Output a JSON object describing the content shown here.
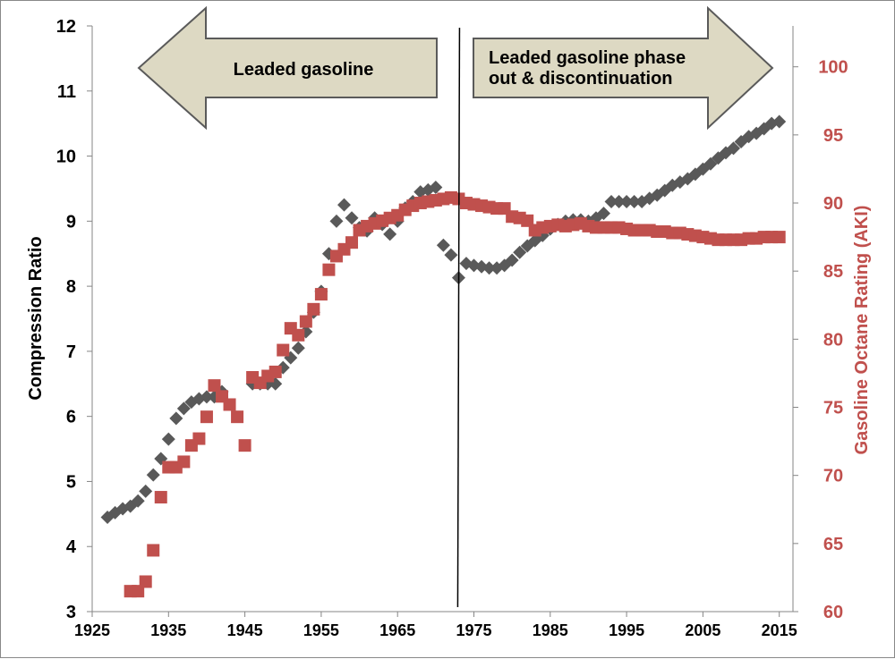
{
  "chart_data": {
    "type": "scatter",
    "title": "",
    "xlabel": "",
    "ylabel": "Compression Ratio",
    "y2label": "Gasoline Octane Rating (AKI)",
    "xlim": [
      1925,
      2018
    ],
    "ylim": [
      3,
      12
    ],
    "y2lim": [
      60,
      103
    ],
    "x_ticks": [
      "1925",
      "1935",
      "1945",
      "1955",
      "1965",
      "1975",
      "1985",
      "1995",
      "2005",
      "2015"
    ],
    "y_ticks": [
      "3",
      "4",
      "5",
      "6",
      "7",
      "8",
      "9",
      "10",
      "11",
      "12"
    ],
    "y2_ticks": [
      "60",
      "65",
      "70",
      "75",
      "80",
      "85",
      "90",
      "95",
      "100"
    ],
    "grid": false,
    "colors": {
      "compression": "#595959",
      "octane": "#c0504d",
      "y2axis": "#c0504d",
      "arrow_fill": "#ddd9c3",
      "arrow_stroke": "#5a5a5a"
    },
    "vertical_line_x": 1973,
    "annotations": [
      {
        "text": "Leaded gasoline",
        "shape": "arrow-left"
      },
      {
        "text": "Leaded gasoline phase",
        "shape": "arrow-right"
      },
      {
        "text": "out & discontinuation",
        "shape": "arrow-right"
      }
    ],
    "series": [
      {
        "name": "Compression Ratio",
        "axis": "left",
        "marker": "diamond",
        "points": [
          [
            1927,
            4.45
          ],
          [
            1928,
            4.52
          ],
          [
            1929,
            4.58
          ],
          [
            1930,
            4.62
          ],
          [
            1931,
            4.7
          ],
          [
            1932,
            4.85
          ],
          [
            1933,
            5.1
          ],
          [
            1934,
            5.35
          ],
          [
            1935,
            5.65
          ],
          [
            1936,
            5.97
          ],
          [
            1937,
            6.12
          ],
          [
            1938,
            6.22
          ],
          [
            1939,
            6.27
          ],
          [
            1940,
            6.3
          ],
          [
            1941,
            6.3
          ],
          [
            1942,
            6.38
          ],
          [
            1946,
            6.5
          ],
          [
            1947,
            6.5
          ],
          [
            1948,
            6.5
          ],
          [
            1949,
            6.5
          ],
          [
            1950,
            6.75
          ],
          [
            1951,
            6.9
          ],
          [
            1952,
            7.05
          ],
          [
            1953,
            7.3
          ],
          [
            1954,
            7.6
          ],
          [
            1955,
            7.92
          ],
          [
            1956,
            8.5
          ],
          [
            1957,
            9.0
          ],
          [
            1958,
            9.25
          ],
          [
            1959,
            9.05
          ],
          [
            1960,
            8.9
          ],
          [
            1961,
            8.85
          ],
          [
            1962,
            9.05
          ],
          [
            1963,
            8.95
          ],
          [
            1964,
            8.8
          ],
          [
            1965,
            9.0
          ],
          [
            1966,
            9.2
          ],
          [
            1967,
            9.3
          ],
          [
            1968,
            9.45
          ],
          [
            1969,
            9.48
          ],
          [
            1970,
            9.52
          ],
          [
            1971,
            8.63
          ],
          [
            1972,
            8.48
          ],
          [
            1973,
            8.13
          ],
          [
            1974,
            8.35
          ],
          [
            1975,
            8.32
          ],
          [
            1976,
            8.3
          ],
          [
            1977,
            8.28
          ],
          [
            1978,
            8.28
          ],
          [
            1979,
            8.32
          ],
          [
            1980,
            8.4
          ],
          [
            1981,
            8.52
          ],
          [
            1982,
            8.62
          ],
          [
            1983,
            8.7
          ],
          [
            1984,
            8.78
          ],
          [
            1985,
            8.88
          ],
          [
            1986,
            8.95
          ],
          [
            1987,
            9.0
          ],
          [
            1988,
            9.02
          ],
          [
            1989,
            9.02
          ],
          [
            1990,
            9.0
          ],
          [
            1991,
            9.05
          ],
          [
            1992,
            9.12
          ],
          [
            1993,
            9.3
          ],
          [
            1994,
            9.3
          ],
          [
            1995,
            9.3
          ],
          [
            1996,
            9.3
          ],
          [
            1997,
            9.3
          ],
          [
            1998,
            9.35
          ],
          [
            1999,
            9.4
          ],
          [
            2000,
            9.47
          ],
          [
            2001,
            9.55
          ],
          [
            2002,
            9.6
          ],
          [
            2003,
            9.65
          ],
          [
            2004,
            9.72
          ],
          [
            2005,
            9.8
          ],
          [
            2006,
            9.88
          ],
          [
            2007,
            9.97
          ],
          [
            2008,
            10.05
          ],
          [
            2009,
            10.12
          ],
          [
            2010,
            10.22
          ],
          [
            2011,
            10.3
          ],
          [
            2012,
            10.35
          ],
          [
            2013,
            10.42
          ],
          [
            2014,
            10.5
          ],
          [
            2015,
            10.53
          ]
        ]
      },
      {
        "name": "Gasoline Octane Rating (AKI)",
        "axis": "right",
        "marker": "square",
        "points": [
          [
            1930,
            61.5
          ],
          [
            1931,
            61.5
          ],
          [
            1932,
            62.2
          ],
          [
            1933,
            64.5
          ],
          [
            1934,
            68.4
          ],
          [
            1935,
            70.6
          ],
          [
            1936,
            70.6
          ],
          [
            1937,
            71.0
          ],
          [
            1938,
            72.2
          ],
          [
            1939,
            72.7
          ],
          [
            1940,
            74.3
          ],
          [
            1941,
            76.6
          ],
          [
            1942,
            75.8
          ],
          [
            1943,
            75.2
          ],
          [
            1944,
            74.3
          ],
          [
            1945,
            72.2
          ],
          [
            1946,
            77.2
          ],
          [
            1947,
            76.8
          ],
          [
            1948,
            77.3
          ],
          [
            1949,
            77.6
          ],
          [
            1950,
            79.2
          ],
          [
            1951,
            80.8
          ],
          [
            1952,
            80.3
          ],
          [
            1953,
            81.3
          ],
          [
            1954,
            82.2
          ],
          [
            1955,
            83.3
          ],
          [
            1956,
            85.1
          ],
          [
            1957,
            86.1
          ],
          [
            1958,
            86.6
          ],
          [
            1959,
            87.1
          ],
          [
            1960,
            88.0
          ],
          [
            1961,
            88.3
          ],
          [
            1962,
            88.5
          ],
          [
            1963,
            88.7
          ],
          [
            1964,
            88.9
          ],
          [
            1965,
            89.1
          ],
          [
            1966,
            89.5
          ],
          [
            1967,
            89.8
          ],
          [
            1968,
            90.0
          ],
          [
            1969,
            90.1
          ],
          [
            1970,
            90.2
          ],
          [
            1971,
            90.3
          ],
          [
            1972,
            90.4
          ],
          [
            1973,
            90.3
          ],
          [
            1974,
            90.0
          ],
          [
            1975,
            89.9
          ],
          [
            1976,
            89.8
          ],
          [
            1977,
            89.7
          ],
          [
            1978,
            89.6
          ],
          [
            1979,
            89.6
          ],
          [
            1980,
            89.0
          ],
          [
            1981,
            88.9
          ],
          [
            1982,
            88.7
          ],
          [
            1983,
            88.0
          ],
          [
            1984,
            88.2
          ],
          [
            1985,
            88.3
          ],
          [
            1986,
            88.4
          ],
          [
            1987,
            88.3
          ],
          [
            1988,
            88.4
          ],
          [
            1989,
            88.5
          ],
          [
            1990,
            88.3
          ],
          [
            1991,
            88.2
          ],
          [
            1992,
            88.2
          ],
          [
            1993,
            88.2
          ],
          [
            1994,
            88.2
          ],
          [
            1995,
            88.1
          ],
          [
            1996,
            88.0
          ],
          [
            1997,
            88.0
          ],
          [
            1998,
            88.0
          ],
          [
            1999,
            87.9
          ],
          [
            2000,
            87.9
          ],
          [
            2001,
            87.8
          ],
          [
            2002,
            87.8
          ],
          [
            2003,
            87.7
          ],
          [
            2004,
            87.6
          ],
          [
            2005,
            87.5
          ],
          [
            2006,
            87.4
          ],
          [
            2007,
            87.3
          ],
          [
            2008,
            87.3
          ],
          [
            2009,
            87.3
          ],
          [
            2010,
            87.3
          ],
          [
            2011,
            87.4
          ],
          [
            2012,
            87.4
          ],
          [
            2013,
            87.5
          ],
          [
            2014,
            87.5
          ],
          [
            2015,
            87.5
          ]
        ]
      }
    ]
  }
}
